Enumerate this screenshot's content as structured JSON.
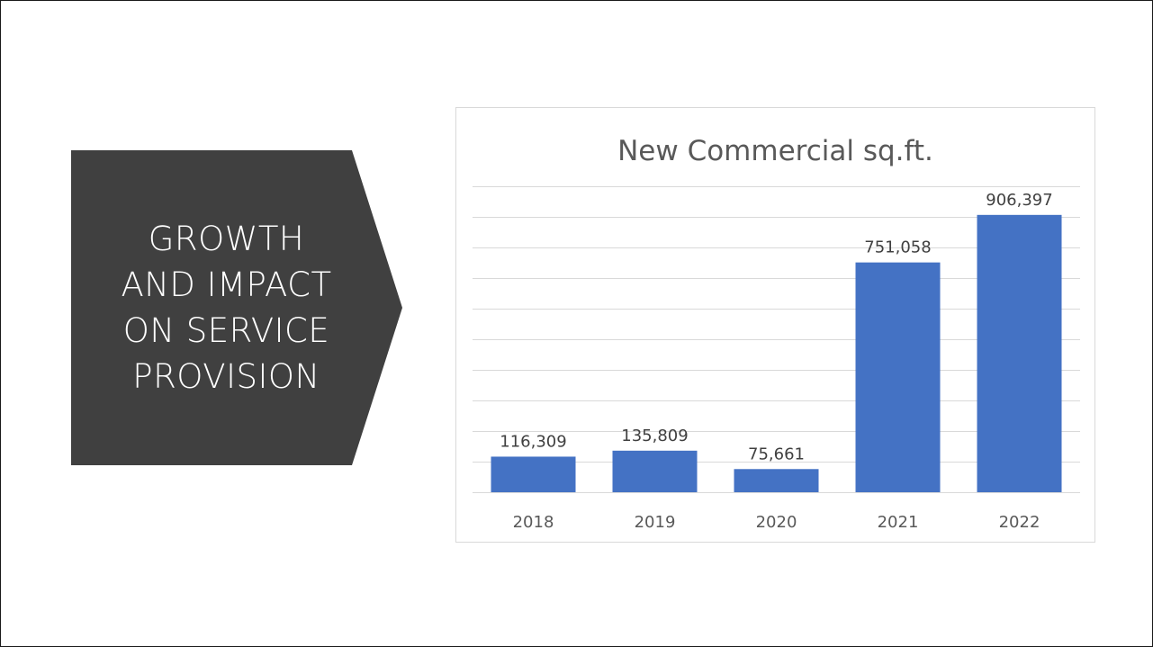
{
  "slide": {
    "banner": {
      "lines": [
        "GROWTH",
        "AND IMPACT",
        "ON SERVICE",
        "PROVISION"
      ],
      "fill_color": "#404040",
      "text_color": "#ffffff"
    }
  },
  "chart_data": {
    "type": "bar",
    "title": "New Commercial sq.ft.",
    "categories": [
      "2018",
      "2019",
      "2020",
      "2021",
      "2022"
    ],
    "values": [
      116309,
      135809,
      75661,
      751058,
      906397
    ],
    "data_labels": [
      "116,309",
      "135,809",
      "75,661",
      "751,058",
      "906,397"
    ],
    "xlabel": "",
    "ylabel": "",
    "ylim": [
      0,
      1000000
    ],
    "y_gridline_step": 100000,
    "y_tick_labels_visible": false,
    "grid": true,
    "legend": "none",
    "bar_color": "#4472c4"
  }
}
